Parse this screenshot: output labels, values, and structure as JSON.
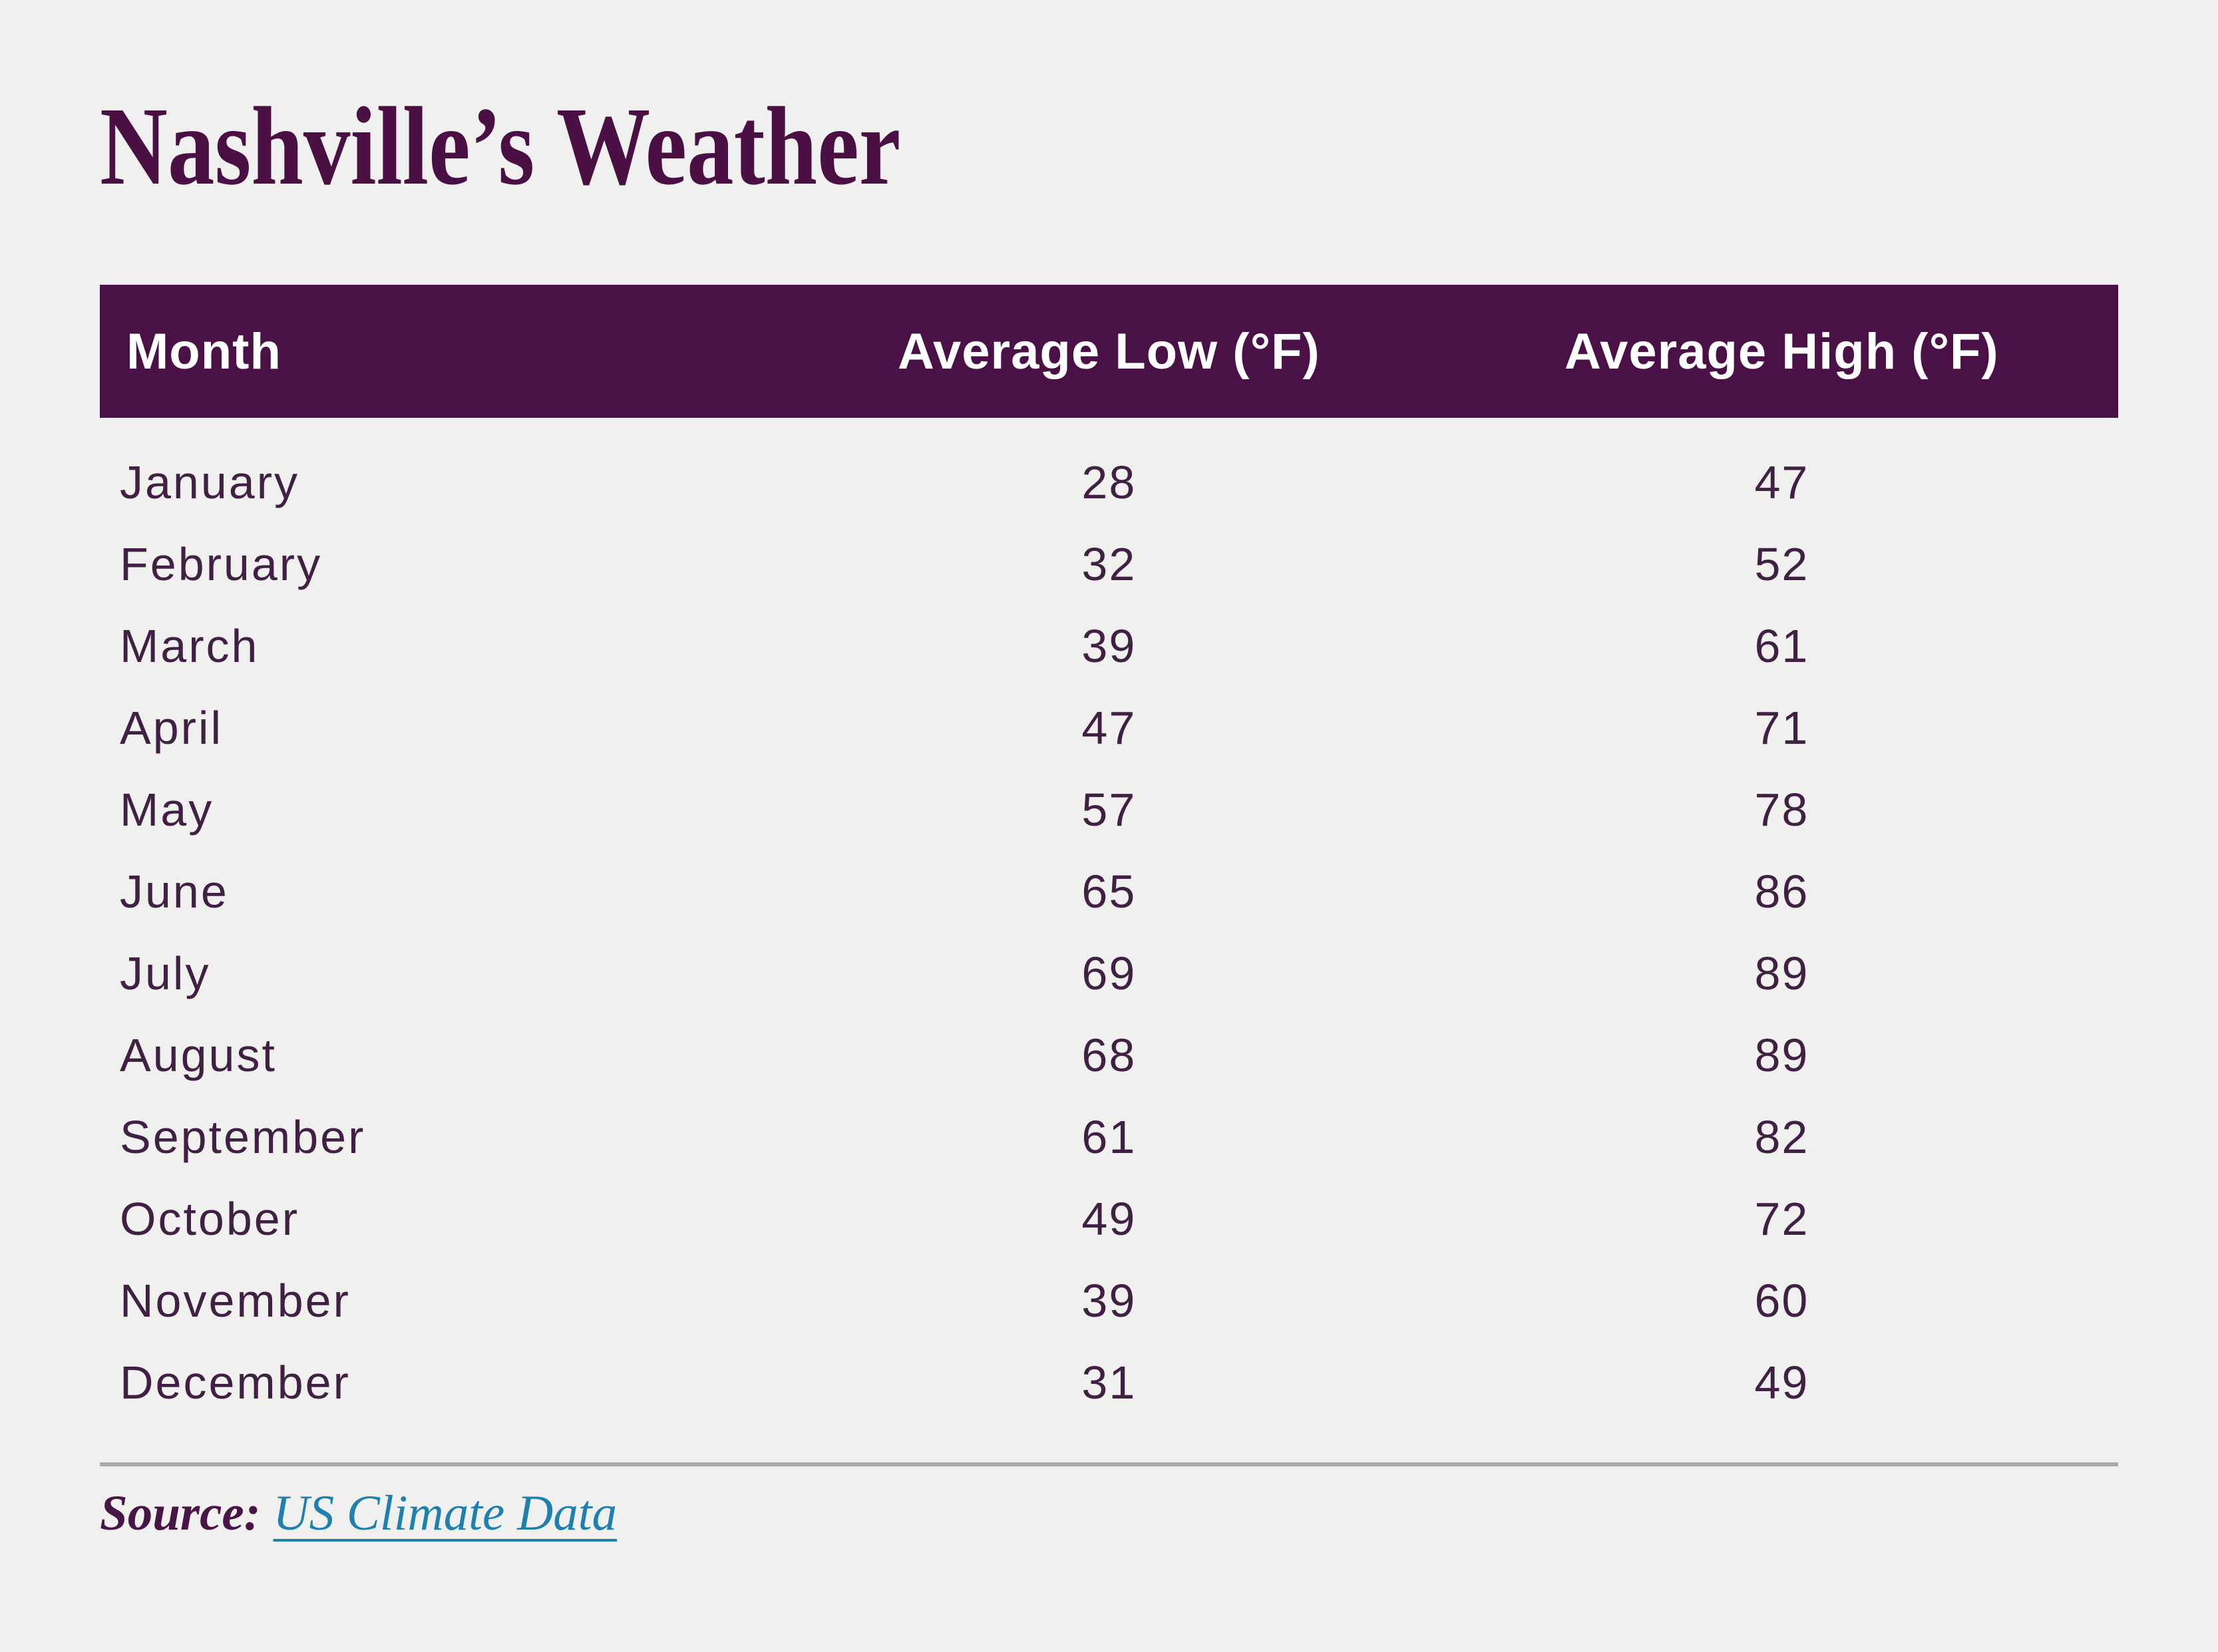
{
  "page": {
    "background_color": "#f0f0ee",
    "accent_color": "#4a1147",
    "text_color": "#402143"
  },
  "title": "Nashville’s Weather",
  "table": {
    "header": {
      "background_color": "#4a1147",
      "text_color": "#ffffff",
      "columns": [
        "Month",
        "Average Low (°F)",
        "Average High (°F)"
      ]
    },
    "rows": [
      {
        "month": "January",
        "low": "28",
        "high": "47"
      },
      {
        "month": "February",
        "low": "32",
        "high": "52"
      },
      {
        "month": "March",
        "low": "39",
        "high": "61"
      },
      {
        "month": "April",
        "low": "47",
        "high": "71"
      },
      {
        "month": "May",
        "low": "57",
        "high": "78"
      },
      {
        "month": "June",
        "low": "65",
        "high": "86"
      },
      {
        "month": "July",
        "low": "69",
        "high": "89"
      },
      {
        "month": "August",
        "low": "68",
        "high": "89"
      },
      {
        "month": "September",
        "low": "61",
        "high": "82"
      },
      {
        "month": "October",
        "low": "49",
        "high": "72"
      },
      {
        "month": "November",
        "low": "39",
        "high": "60"
      },
      {
        "month": "December",
        "low": "31",
        "high": "49"
      }
    ]
  },
  "footer": {
    "source_label": "Source:",
    "link_text": "US Climate Data",
    "link_color": "#1e80af",
    "divider_color": "#a9a9a9"
  },
  "chart_data": {
    "type": "table",
    "title": "Nashville’s Weather",
    "columns": [
      "Month",
      "Average Low (°F)",
      "Average High (°F)"
    ],
    "categories": [
      "January",
      "February",
      "March",
      "April",
      "May",
      "June",
      "July",
      "August",
      "September",
      "October",
      "November",
      "December"
    ],
    "series": [
      {
        "name": "Average Low (°F)",
        "values": [
          28,
          32,
          39,
          47,
          57,
          65,
          69,
          68,
          61,
          49,
          39,
          31
        ]
      },
      {
        "name": "Average High (°F)",
        "values": [
          47,
          52,
          61,
          71,
          78,
          86,
          89,
          89,
          82,
          72,
          60,
          49
        ]
      }
    ],
    "source": "US Climate Data"
  }
}
